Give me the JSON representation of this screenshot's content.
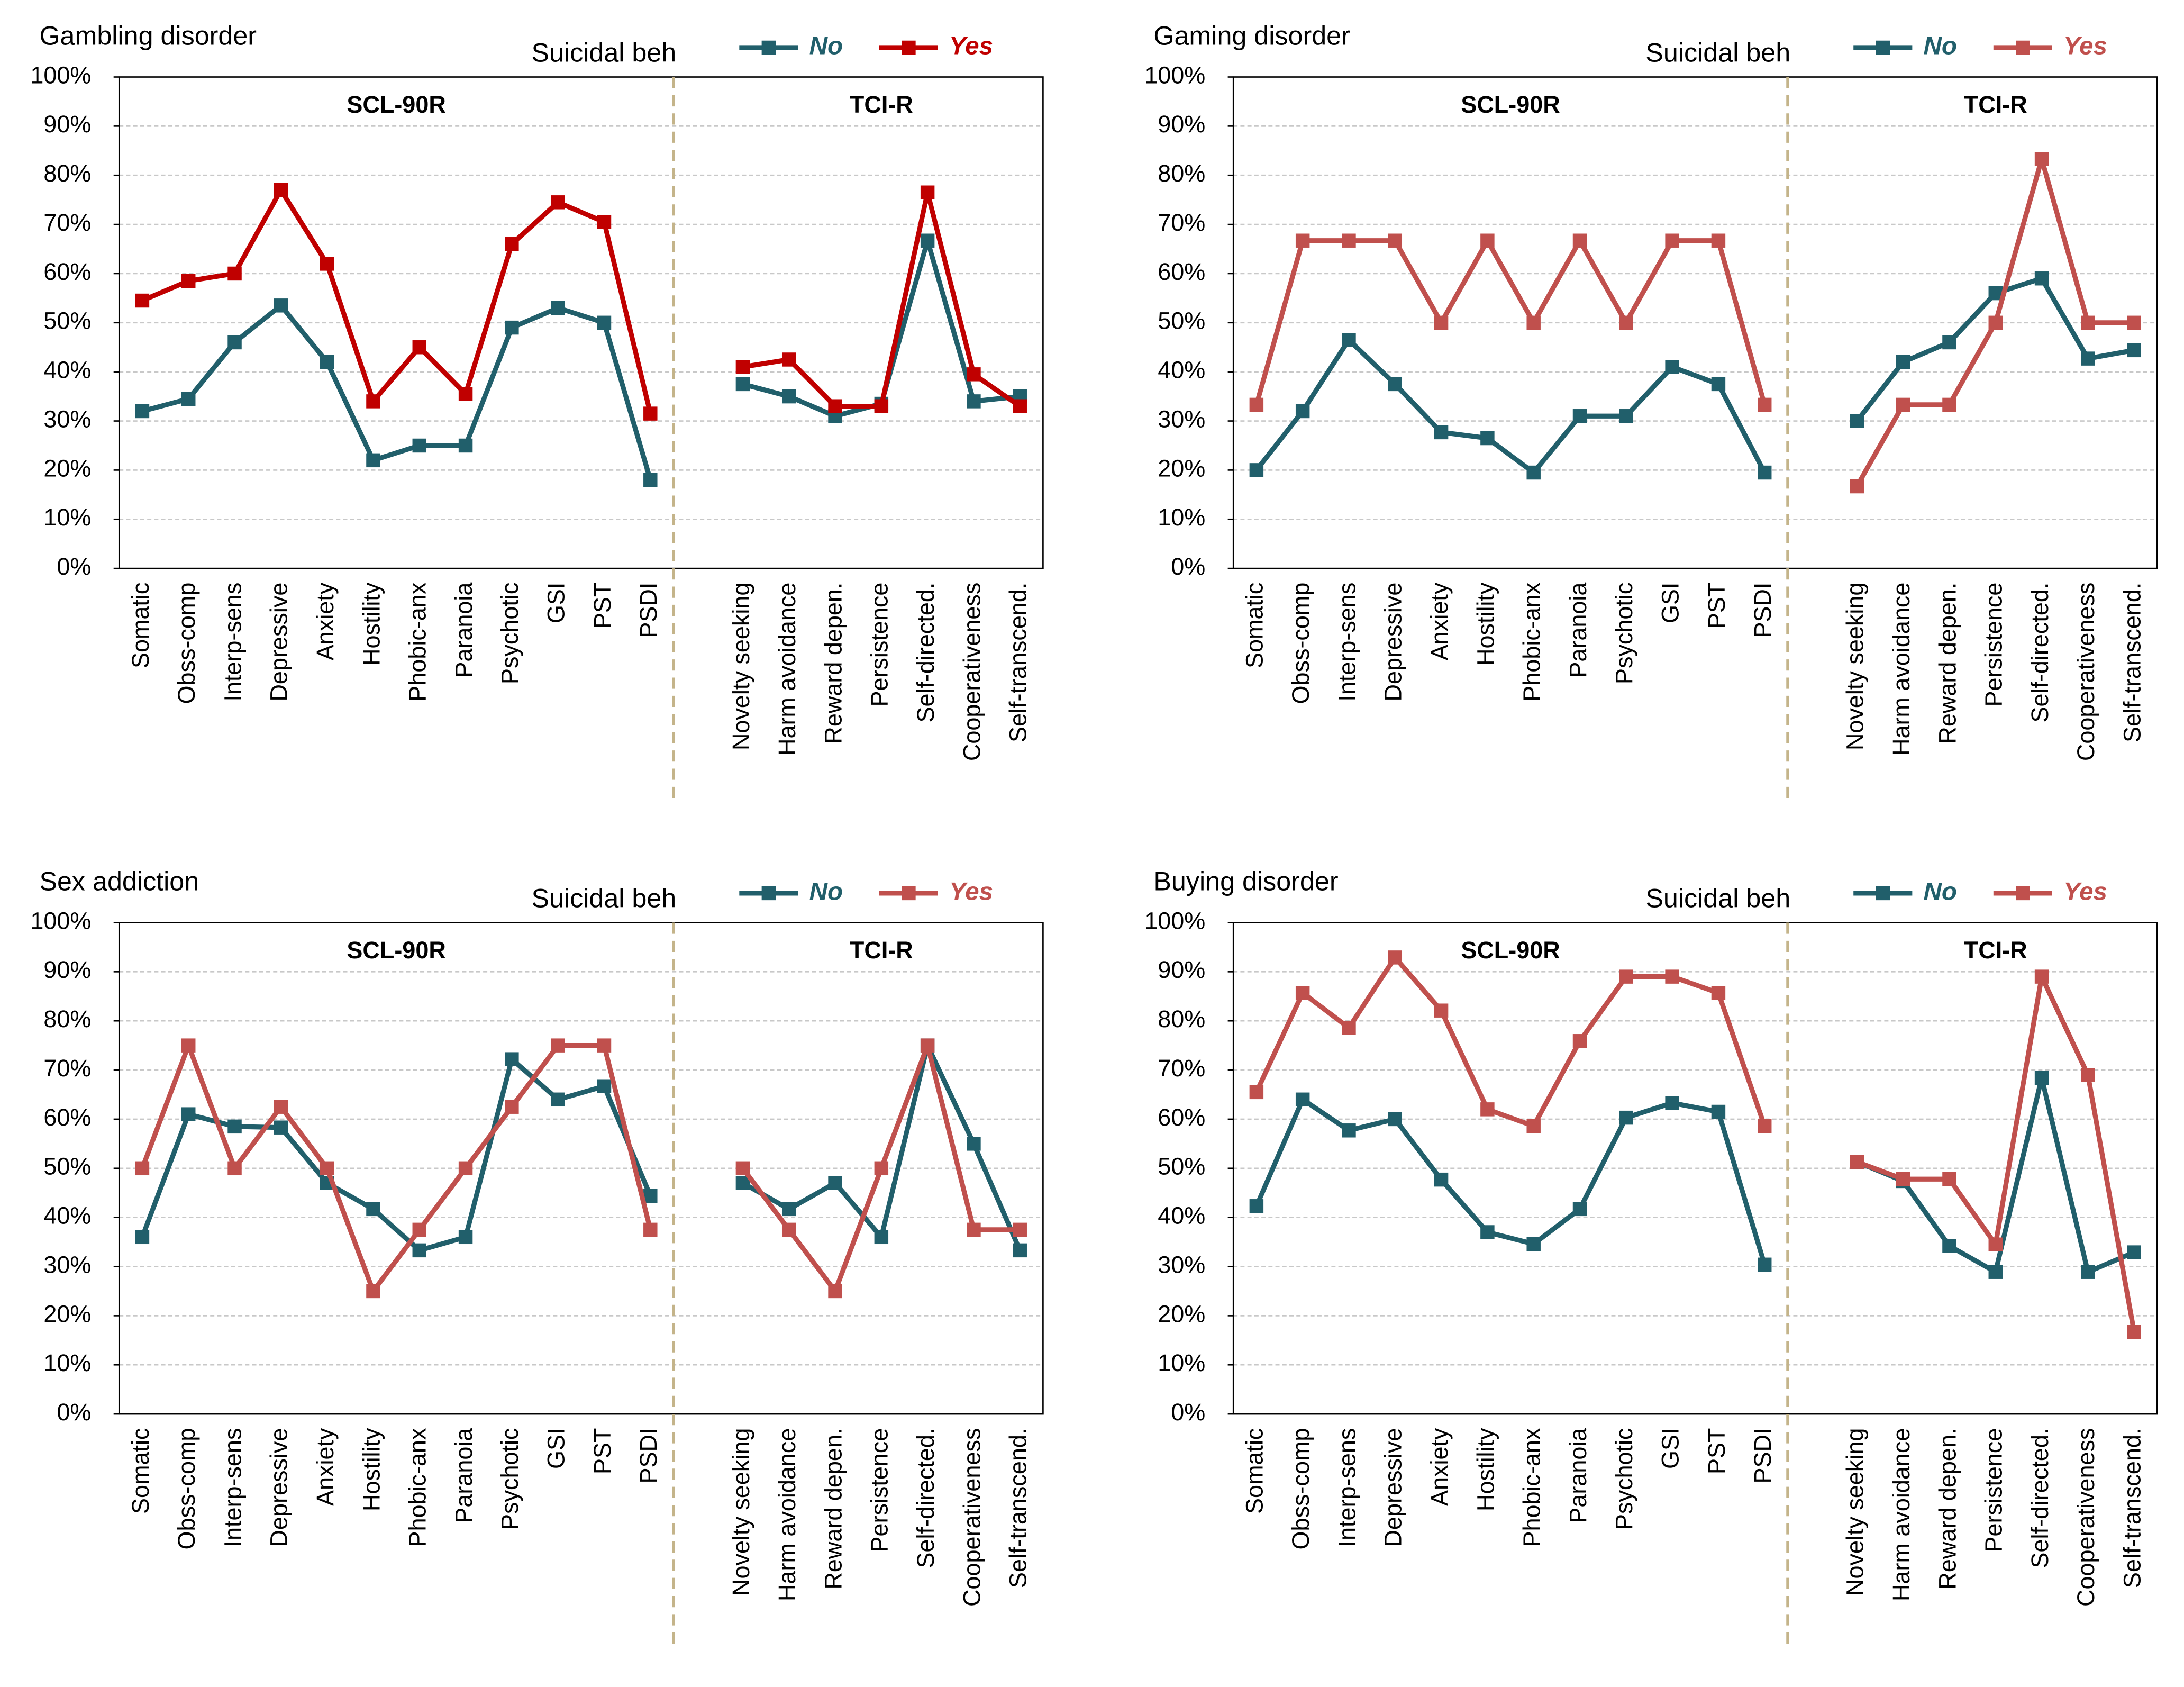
{
  "chart_data": [
    {
      "type": "line",
      "title": "Gambling disorder",
      "legend_title": "Suicidal beh",
      "groups": [
        "SCL-90R",
        "TCI-R"
      ],
      "categories": [
        "Somatic",
        "Obss-comp",
        "Interp-sens",
        "Depressive",
        "Anxiety",
        "Hostility",
        "Phobic-anx",
        "Paranoia",
        "Psychotic",
        "GSI",
        "PST",
        "PSDI",
        null,
        "Novelty seeking",
        "Harm avoidance",
        "Reward depen.",
        "Persistence",
        "Self-directed.",
        "Cooperativeness",
        "Self-transcend."
      ],
      "series": [
        {
          "name": "No",
          "color": "#215f6b",
          "values": [
            32,
            34.5,
            46,
            53.5,
            42,
            22,
            25,
            25,
            49,
            53,
            50,
            18,
            null,
            37.5,
            35,
            31,
            33.5,
            66.7,
            34,
            35
          ]
        },
        {
          "name": "Yes",
          "color": "#c00000",
          "values": [
            54.5,
            58.5,
            60,
            77,
            62,
            34,
            45,
            35.5,
            66,
            74.5,
            70.5,
            31.5,
            null,
            41,
            42.5,
            33,
            33,
            76.5,
            39.5,
            33
          ]
        }
      ],
      "ylim": [
        0,
        100
      ],
      "yticks": [
        {
          "value": 0,
          "label": "0%"
        },
        {
          "value": 10,
          "label": "10%"
        },
        {
          "value": 20,
          "label": "20%"
        },
        {
          "value": 30,
          "label": "30%"
        },
        {
          "value": 40,
          "label": "40%"
        },
        {
          "value": 50,
          "label": "50%"
        },
        {
          "value": 60,
          "label": "60%"
        },
        {
          "value": 70,
          "label": "70%"
        },
        {
          "value": 80,
          "label": "80%"
        },
        {
          "value": 90,
          "label": "90%"
        },
        {
          "value": 100,
          "label": "100%"
        }
      ],
      "grid": true
    },
    {
      "type": "line",
      "title": "Gaming disorder",
      "legend_title": "Suicidal beh",
      "groups": [
        "SCL-90R",
        "TCI-R"
      ],
      "categories": [
        "Somatic",
        "Obss-comp",
        "Interp-sens",
        "Depressive",
        "Anxiety",
        "Hostility",
        "Phobic-anx",
        "Paranoia",
        "Psychotic",
        "GSI",
        "PST",
        "PSDI",
        null,
        "Novelty seeking",
        "Harm avoidance",
        "Reward depen.",
        "Persistence",
        "Self-directed.",
        "Cooperativeness",
        "Self-transcend."
      ],
      "series": [
        {
          "name": "No",
          "color": "#215f6b",
          "values": [
            20,
            32,
            46.5,
            37.5,
            27.7,
            26.5,
            19.5,
            31,
            31,
            41,
            37.5,
            19.5,
            null,
            30,
            42,
            46,
            56,
            59,
            42.7,
            44.4
          ]
        },
        {
          "name": "Yes",
          "color": "#c0504d",
          "values": [
            33.3,
            66.7,
            66.7,
            66.7,
            50,
            66.7,
            50,
            66.7,
            50,
            66.7,
            66.7,
            33.3,
            null,
            16.7,
            33.3,
            33.3,
            50,
            83.3,
            50,
            50
          ]
        }
      ],
      "ylim": [
        0,
        100
      ],
      "yticks": [
        {
          "value": 0,
          "label": "0%"
        },
        {
          "value": 10,
          "label": "10%"
        },
        {
          "value": 20,
          "label": "20%"
        },
        {
          "value": 30,
          "label": "30%"
        },
        {
          "value": 40,
          "label": "40%"
        },
        {
          "value": 50,
          "label": "50%"
        },
        {
          "value": 60,
          "label": "60%"
        },
        {
          "value": 70,
          "label": "70%"
        },
        {
          "value": 80,
          "label": "80%"
        },
        {
          "value": 90,
          "label": "90%"
        },
        {
          "value": 100,
          "label": "100%"
        }
      ],
      "grid": true
    },
    {
      "type": "line",
      "title": "Sex addiction",
      "legend_title": "Suicidal beh",
      "groups": [
        "SCL-90R",
        "TCI-R"
      ],
      "categories": [
        "Somatic",
        "Obss-comp",
        "Interp-sens",
        "Depressive",
        "Anxiety",
        "Hostility",
        "Phobic-anx",
        "Paranoia",
        "Psychotic",
        "GSI",
        "PST",
        "PSDI",
        null,
        "Novelty seeking",
        "Harm avoidance",
        "Reward depen.",
        "Persistence",
        "Self-directed.",
        "Cooperativeness",
        "Self-transcend."
      ],
      "series": [
        {
          "name": "No",
          "color": "#215f6b",
          "values": [
            36,
            61,
            58.5,
            58.3,
            47,
            41.7,
            33.3,
            36,
            72.2,
            64,
            66.7,
            44.4,
            null,
            47,
            41.7,
            47,
            36,
            75,
            55,
            33.3
          ]
        },
        {
          "name": "Yes",
          "color": "#c0504d",
          "values": [
            50,
            75,
            50,
            62.5,
            50,
            25,
            37.5,
            50,
            62.5,
            75,
            75,
            37.5,
            null,
            50,
            37.5,
            25,
            50,
            75,
            37.5,
            37.5
          ]
        }
      ],
      "ylim": [
        0,
        100
      ],
      "yticks": [
        {
          "value": 0,
          "label": "0%"
        },
        {
          "value": 10,
          "label": "10%"
        },
        {
          "value": 20,
          "label": "20%"
        },
        {
          "value": 30,
          "label": "30%"
        },
        {
          "value": 40,
          "label": "40%"
        },
        {
          "value": 50,
          "label": "50%"
        },
        {
          "value": 60,
          "label": "60%"
        },
        {
          "value": 70,
          "label": "70%"
        },
        {
          "value": 80,
          "label": "80%"
        },
        {
          "value": 90,
          "label": "90%"
        },
        {
          "value": 100,
          "label": "100%"
        }
      ],
      "grid": true
    },
    {
      "type": "line",
      "title": "Buying disorder",
      "legend_title": "Suicidal beh",
      "groups": [
        "SCL-90R",
        "TCI-R"
      ],
      "categories": [
        "Somatic",
        "Obss-comp",
        "Interp-sens",
        "Depressive",
        "Anxiety",
        "Hostility",
        "Phobic-anx",
        "Paranoia",
        "Psychotic",
        "GSI",
        "PST",
        "PSDI",
        null,
        "Novelty seeking",
        "Harm avoidance",
        "Reward depen.",
        "Persistence",
        "Self-directed.",
        "Cooperativeness",
        "Self-transcend."
      ],
      "series": [
        {
          "name": "No",
          "color": "#215f6b",
          "values": [
            42.3,
            64,
            57.7,
            60,
            47.7,
            37,
            34.6,
            41.7,
            60.3,
            63.3,
            61.5,
            30.4,
            null,
            51.3,
            47.4,
            34.2,
            28.9,
            68.4,
            28.9,
            32.9
          ]
        },
        {
          "name": "Yes",
          "color": "#c0504d",
          "values": [
            65.5,
            85.7,
            78.6,
            92.9,
            82.1,
            62,
            58.6,
            75.9,
            89,
            89,
            85.7,
            58.6,
            null,
            51.3,
            47.8,
            47.8,
            34.5,
            89,
            69,
            16.7
          ]
        }
      ],
      "ylim": [
        0,
        100
      ],
      "yticks": [
        {
          "value": 0,
          "label": "0%"
        },
        {
          "value": 10,
          "label": "10%"
        },
        {
          "value": 20,
          "label": "20%"
        },
        {
          "value": 30,
          "label": "30%"
        },
        {
          "value": 40,
          "label": "40%"
        },
        {
          "value": 50,
          "label": "50%"
        },
        {
          "value": 60,
          "label": "60%"
        },
        {
          "value": 70,
          "label": "70%"
        },
        {
          "value": 80,
          "label": "80%"
        },
        {
          "value": 90,
          "label": "90%"
        },
        {
          "value": 100,
          "label": "100%"
        }
      ],
      "grid": true
    }
  ]
}
